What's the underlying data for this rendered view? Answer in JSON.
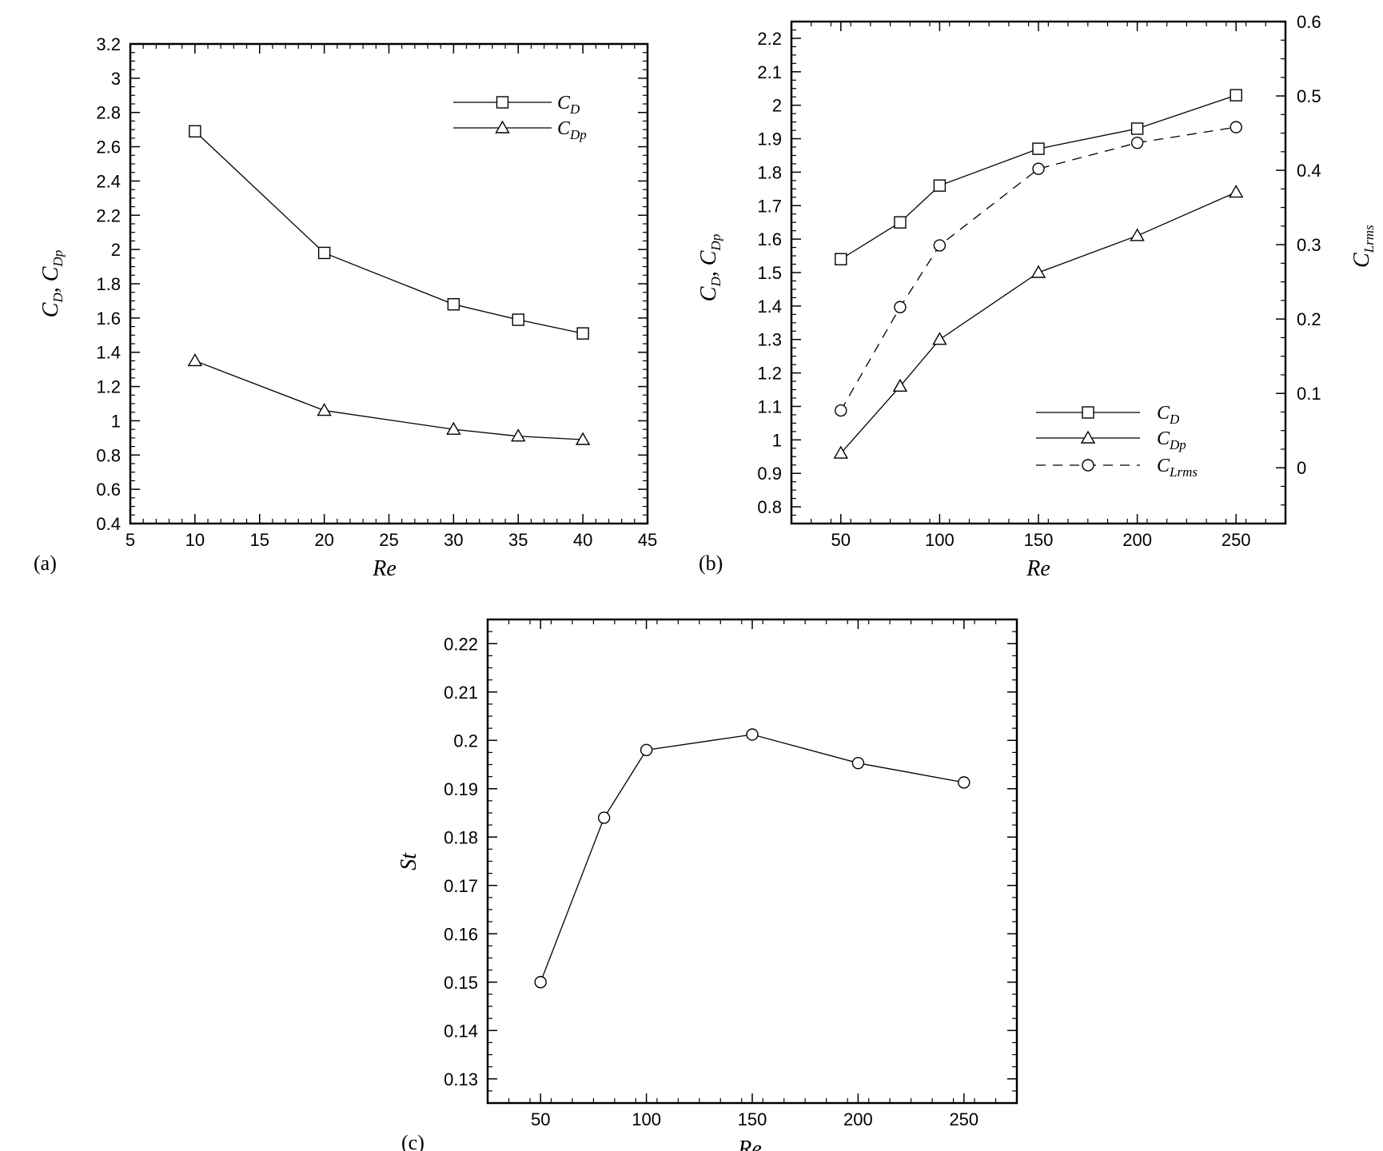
{
  "chart_data": [
    {
      "id": "a",
      "type": "line",
      "panel_label": "(a)",
      "xlabel": "Re",
      "ylabel": {
        "main": "C",
        "sub1": "D",
        "sep": ",  C",
        "sub2": "Dp"
      },
      "xlim": [
        5,
        45
      ],
      "ylim": [
        0.4,
        3.2
      ],
      "xticks": [
        5,
        10,
        15,
        20,
        25,
        30,
        35,
        40,
        45
      ],
      "yticks": [
        0.4,
        0.6,
        0.8,
        1,
        1.2,
        1.4,
        1.6,
        1.8,
        2,
        2.2,
        2.4,
        2.6,
        2.8,
        3,
        3.2
      ],
      "legend_position": "top-right",
      "series": [
        {
          "name": "C_D",
          "name_main": "C",
          "name_sub": "D",
          "marker": "square",
          "dash": "solid",
          "x": [
            10,
            20,
            30,
            35,
            40
          ],
          "y": [
            2.69,
            1.98,
            1.68,
            1.59,
            1.51
          ]
        },
        {
          "name": "C_Dp",
          "name_main": "C",
          "name_sub": "Dp",
          "marker": "triangle",
          "dash": "solid",
          "x": [
            10,
            20,
            30,
            35,
            40
          ],
          "y": [
            1.35,
            1.06,
            0.95,
            0.91,
            0.89
          ]
        }
      ]
    },
    {
      "id": "b",
      "type": "line",
      "panel_label": "(b)",
      "xlabel": "Re",
      "ylabel": {
        "main": "C",
        "sub1": "D",
        "sep": ", C",
        "sub2": "Dp"
      },
      "ylabel_right": {
        "main": "C",
        "sub": "Lrms"
      },
      "xlim": [
        25,
        275
      ],
      "ylim": [
        0.75,
        2.25
      ],
      "ylim_right": [
        -0.075,
        0.6
      ],
      "xticks": [
        50,
        100,
        150,
        200,
        250
      ],
      "yticks": [
        0.8,
        0.9,
        1,
        1.1,
        1.2,
        1.3,
        1.4,
        1.5,
        1.6,
        1.7,
        1.8,
        1.9,
        2,
        2.1,
        2.2
      ],
      "yticks_right": [
        0,
        0.1,
        0.2,
        0.3,
        0.4,
        0.5,
        0.6
      ],
      "legend_position": "bottom-right",
      "series": [
        {
          "name": "C_D",
          "name_main": "C",
          "name_sub": "D",
          "marker": "square",
          "dash": "solid",
          "axis": "left",
          "x": [
            50,
            80,
            100,
            150,
            200,
            250
          ],
          "y": [
            1.54,
            1.65,
            1.76,
            1.87,
            1.93,
            2.03
          ]
        },
        {
          "name": "C_Dp",
          "name_main": "C",
          "name_sub": "Dp",
          "marker": "triangle",
          "dash": "solid",
          "axis": "left",
          "x": [
            50,
            80,
            100,
            150,
            200,
            250
          ],
          "y": [
            0.96,
            1.16,
            1.3,
            1.5,
            1.61,
            1.74
          ]
        },
        {
          "name": "C_Lrms",
          "name_main": "C",
          "name_sub": "Lrms",
          "marker": "circle",
          "dash": "dashed",
          "axis": "right",
          "x": [
            50,
            80,
            100,
            150,
            200,
            250
          ],
          "y": [
            0.077,
            0.216,
            0.299,
            0.402,
            0.437,
            0.458
          ]
        }
      ]
    },
    {
      "id": "c",
      "type": "line",
      "panel_label": "(c)",
      "xlabel": "Re",
      "ylabel": {
        "main": "St"
      },
      "xlim": [
        25,
        275
      ],
      "ylim": [
        0.125,
        0.225
      ],
      "xticks": [
        50,
        100,
        150,
        200,
        250
      ],
      "yticks": [
        0.13,
        0.14,
        0.15,
        0.16,
        0.17,
        0.18,
        0.19,
        0.2,
        0.21,
        0.22
      ],
      "series": [
        {
          "name": "",
          "marker": "circle",
          "dash": "solid",
          "x": [
            50,
            80,
            100,
            150,
            200,
            250
          ],
          "y": [
            0.15,
            0.184,
            0.198,
            0.2012,
            0.1953,
            0.1913
          ]
        }
      ]
    }
  ]
}
